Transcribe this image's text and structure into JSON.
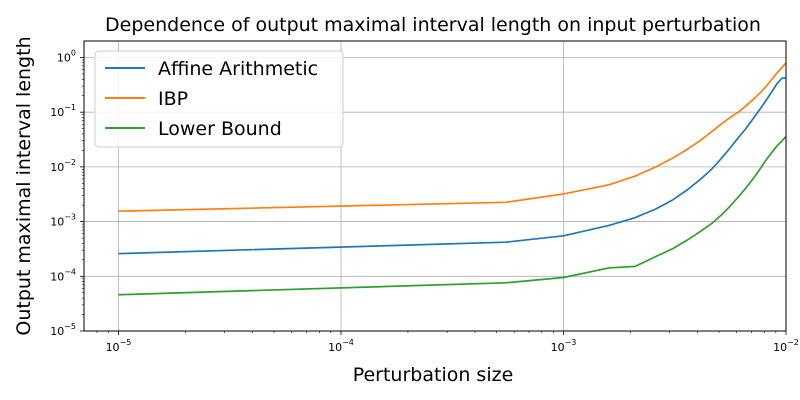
{
  "chart_data": {
    "type": "line",
    "title": "Dependence of output maximal interval length on input perturbation",
    "xlabel": "Perturbation size",
    "ylabel": "Output maximal interval length",
    "xscale": "log",
    "yscale": "log",
    "xlim": [
      7e-06,
      0.01
    ],
    "ylim": [
      1e-05,
      2
    ],
    "x_ticks": [
      {
        "base": "10",
        "exp": "−5",
        "value": 1e-05
      },
      {
        "base": "10",
        "exp": "−4",
        "value": 0.0001
      },
      {
        "base": "10",
        "exp": "−3",
        "value": 0.001
      },
      {
        "base": "10",
        "exp": "−2",
        "value": 0.01
      }
    ],
    "y_ticks": [
      {
        "base": "10",
        "exp": "−5",
        "value": 1e-05
      },
      {
        "base": "10",
        "exp": "−4",
        "value": 0.0001
      },
      {
        "base": "10",
        "exp": "−3",
        "value": 0.001
      },
      {
        "base": "10",
        "exp": "−2",
        "value": 0.01
      },
      {
        "base": "10",
        "exp": "−1",
        "value": 0.1
      },
      {
        "base": "10",
        "exp": "0",
        "value": 1
      }
    ],
    "grid": true,
    "legend_position": "top-left",
    "series": [
      {
        "name": "Affine Arithmetic",
        "color": "#1f77b4",
        "points": [
          [
            1e-05,
            0.00026
          ],
          [
            0.00055,
            0.00042
          ],
          [
            0.001,
            0.00055
          ],
          [
            0.0016,
            0.00085
          ],
          [
            0.0021,
            0.00118
          ],
          [
            0.0026,
            0.0017
          ],
          [
            0.0031,
            0.0025
          ],
          [
            0.0036,
            0.0038
          ],
          [
            0.0041,
            0.0058
          ],
          [
            0.0046,
            0.0088
          ],
          [
            0.0051,
            0.014
          ],
          [
            0.0056,
            0.022
          ],
          [
            0.0061,
            0.034
          ],
          [
            0.0066,
            0.05
          ],
          [
            0.0071,
            0.075
          ],
          [
            0.0076,
            0.11
          ],
          [
            0.0081,
            0.16
          ],
          [
            0.0086,
            0.23
          ],
          [
            0.0091,
            0.33
          ],
          [
            0.0096,
            0.42
          ],
          [
            0.01,
            0.42
          ]
        ]
      },
      {
        "name": "IBP",
        "color": "#ff7f0e",
        "points": [
          [
            1e-05,
            0.00155
          ],
          [
            0.00055,
            0.00225
          ],
          [
            0.001,
            0.0032
          ],
          [
            0.0016,
            0.0047
          ],
          [
            0.0021,
            0.0068
          ],
          [
            0.0026,
            0.01
          ],
          [
            0.0031,
            0.0145
          ],
          [
            0.0036,
            0.021
          ],
          [
            0.0041,
            0.03
          ],
          [
            0.0046,
            0.043
          ],
          [
            0.0051,
            0.06
          ],
          [
            0.0056,
            0.08
          ],
          [
            0.0061,
            0.1
          ],
          [
            0.0066,
            0.13
          ],
          [
            0.0071,
            0.17
          ],
          [
            0.0076,
            0.22
          ],
          [
            0.0081,
            0.29
          ],
          [
            0.0086,
            0.39
          ],
          [
            0.0091,
            0.52
          ],
          [
            0.0096,
            0.66
          ],
          [
            0.01,
            0.8
          ]
        ]
      },
      {
        "name": "Lower Bound",
        "color": "#2ca02c",
        "points": [
          [
            1e-05,
            4.6e-05
          ],
          [
            0.00055,
            7.6e-05
          ],
          [
            0.001,
            9.5e-05
          ],
          [
            0.0016,
            0.000142
          ],
          [
            0.0021,
            0.000152
          ],
          [
            0.0026,
            0.00023
          ],
          [
            0.0031,
            0.00032
          ],
          [
            0.0036,
            0.00046
          ],
          [
            0.0041,
            0.00065
          ],
          [
            0.0046,
            0.0009
          ],
          [
            0.0051,
            0.0013
          ],
          [
            0.0056,
            0.0019
          ],
          [
            0.0061,
            0.0028
          ],
          [
            0.0066,
            0.0041
          ],
          [
            0.0071,
            0.006
          ],
          [
            0.0076,
            0.0088
          ],
          [
            0.0081,
            0.013
          ],
          [
            0.0086,
            0.018
          ],
          [
            0.0091,
            0.024
          ],
          [
            0.0096,
            0.03
          ],
          [
            0.01,
            0.036
          ]
        ]
      }
    ]
  }
}
